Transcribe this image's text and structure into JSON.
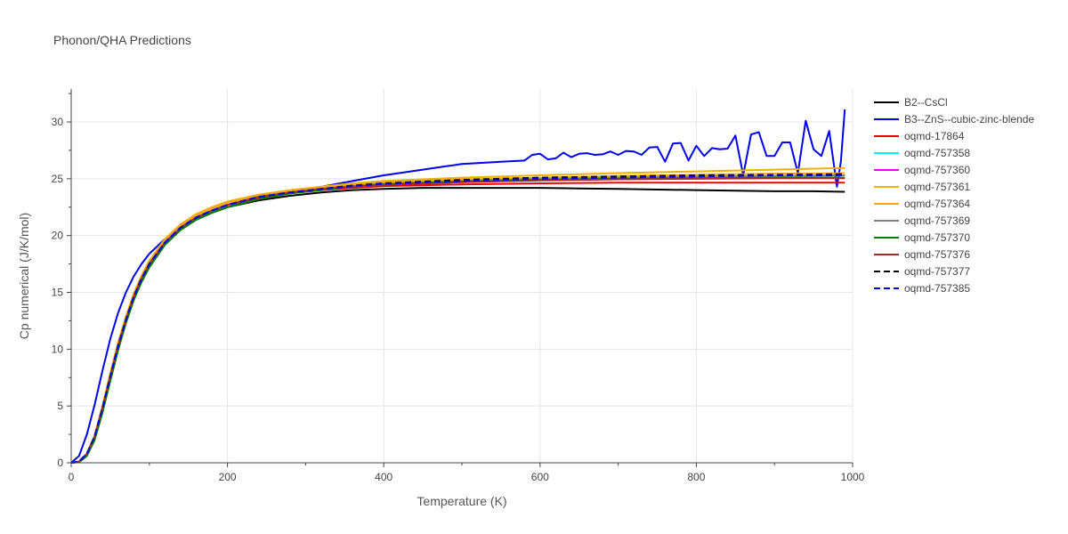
{
  "chart_data": {
    "type": "line",
    "title": "Phonon/QHA Predictions",
    "xlabel": "Temperature (K)",
    "ylabel": "Cp numerical (J/K/mol)",
    "xlim": [
      0,
      1000
    ],
    "ylim": [
      0,
      32.9
    ],
    "xticks": [
      0,
      200,
      400,
      600,
      800,
      1000
    ],
    "yticks": [
      0,
      5,
      10,
      15,
      20,
      25,
      30
    ],
    "grid": true,
    "legend_position": "right",
    "series": [
      {
        "name": "B2--CsCl",
        "color": "#000000",
        "dash": "solid",
        "x": [
          0,
          10,
          20,
          30,
          40,
          50,
          60,
          70,
          80,
          90,
          100,
          120,
          140,
          160,
          180,
          200,
          240,
          280,
          320,
          360,
          400,
          450,
          500,
          550,
          600,
          650,
          700,
          800,
          850,
          900,
          950,
          990
        ],
        "y": [
          0,
          0.1,
          0.7,
          2.1,
          4.5,
          7.3,
          10,
          12.4,
          14.4,
          16,
          17.3,
          19.2,
          20.5,
          21.4,
          22,
          22.5,
          23.1,
          23.5,
          23.8,
          24,
          24.1,
          24.2,
          24.2,
          24.2,
          24.2,
          24.15,
          24.1,
          24,
          23.95,
          23.9,
          23.9,
          23.85
        ]
      },
      {
        "name": "B3--ZnS--cubic-zinc-blende",
        "color": "#0000ee",
        "dash": "solid",
        "x": [
          0,
          10,
          20,
          30,
          40,
          50,
          60,
          70,
          80,
          90,
          100,
          120,
          140,
          160,
          180,
          200,
          240,
          280,
          320,
          360,
          400,
          450,
          480,
          500,
          550,
          580,
          590,
          600,
          610,
          620,
          630,
          640,
          650,
          660,
          670,
          680,
          690,
          700,
          710,
          720,
          730,
          740,
          750,
          760,
          770,
          780,
          790,
          800,
          810,
          820,
          830,
          840,
          850,
          860,
          870,
          880,
          890,
          900,
          910,
          920,
          930,
          940,
          950,
          960,
          970,
          980,
          985,
          990
        ],
        "y": [
          0,
          0.6,
          2.5,
          5.1,
          8.1,
          10.9,
          13.2,
          15,
          16.4,
          17.5,
          18.4,
          19.7,
          20.7,
          21.4,
          22,
          22.5,
          23.3,
          23.8,
          24.3,
          24.8,
          25.3,
          25.8,
          26.1,
          26.3,
          26.5,
          26.6,
          27.1,
          27.2,
          26.7,
          26.8,
          27.3,
          26.9,
          27.2,
          27.25,
          27.1,
          27.15,
          27.4,
          27.1,
          27.45,
          27.4,
          27.1,
          27.75,
          27.8,
          26.5,
          28.1,
          28.15,
          26.6,
          27.9,
          27.0,
          27.7,
          27.6,
          27.65,
          28.8,
          25.3,
          28.9,
          29.1,
          27.0,
          27.0,
          28.2,
          28.2,
          25.5,
          30.1,
          27.6,
          27.0,
          29.2,
          24.3,
          26.5,
          31.1
        ]
      },
      {
        "name": "oqmd-17864",
        "color": "#ee0000",
        "dash": "solid",
        "x": [
          0,
          10,
          20,
          30,
          40,
          50,
          60,
          70,
          80,
          90,
          100,
          120,
          140,
          160,
          180,
          200,
          240,
          280,
          320,
          360,
          400,
          500,
          600,
          700,
          800,
          900,
          990
        ],
        "y": [
          0,
          0.1,
          0.8,
          2.3,
          4.8,
          7.6,
          10.3,
          12.6,
          14.6,
          16.2,
          17.5,
          19.4,
          20.7,
          21.6,
          22.2,
          22.7,
          23.3,
          23.7,
          24,
          24.2,
          24.35,
          24.5,
          24.6,
          24.65,
          24.65,
          24.65,
          24.65
        ]
      },
      {
        "name": "oqmd-757358",
        "color": "#00eeee",
        "dash": "solid",
        "x": [
          0,
          10,
          20,
          30,
          40,
          50,
          60,
          70,
          80,
          90,
          100,
          120,
          140,
          160,
          180,
          200,
          240,
          280,
          320,
          360,
          400,
          500,
          600,
          700,
          800,
          900,
          990
        ],
        "y": [
          0,
          0.1,
          0.8,
          2.3,
          4.8,
          7.6,
          10.3,
          12.6,
          14.6,
          16.2,
          17.5,
          19.4,
          20.7,
          21.6,
          22.2,
          22.7,
          23.4,
          23.8,
          24.1,
          24.3,
          24.5,
          24.7,
          24.9,
          25,
          25.05,
          25.1,
          25.1
        ]
      },
      {
        "name": "oqmd-757360",
        "color": "#ee00ee",
        "dash": "solid",
        "x": [
          0,
          10,
          20,
          30,
          40,
          50,
          60,
          70,
          80,
          90,
          100,
          120,
          140,
          160,
          180,
          200,
          240,
          280,
          320,
          360,
          400,
          500,
          600,
          700,
          800,
          900,
          990
        ],
        "y": [
          0,
          0.1,
          0.8,
          2.3,
          4.8,
          7.6,
          10.3,
          12.6,
          14.6,
          16.2,
          17.5,
          19.4,
          20.7,
          21.6,
          22.2,
          22.7,
          23.4,
          23.8,
          24.1,
          24.35,
          24.55,
          24.8,
          25,
          25.1,
          25.2,
          25.25,
          25.3
        ]
      },
      {
        "name": "oqmd-757361",
        "color": "#f0b000",
        "dash": "solid",
        "x": [
          0,
          10,
          20,
          30,
          40,
          50,
          60,
          70,
          80,
          90,
          100,
          120,
          140,
          160,
          180,
          200,
          240,
          280,
          320,
          360,
          400,
          500,
          600,
          700,
          800,
          900,
          990
        ],
        "y": [
          0,
          0.1,
          0.8,
          2.4,
          5,
          7.9,
          10.6,
          12.9,
          14.9,
          16.5,
          17.8,
          19.7,
          21,
          21.9,
          22.5,
          23,
          23.6,
          24,
          24.3,
          24.6,
          24.8,
          25.1,
          25.3,
          25.5,
          25.65,
          25.8,
          25.95
        ]
      },
      {
        "name": "oqmd-757364",
        "color": "#ffa500",
        "dash": "solid",
        "x": [
          0,
          10,
          20,
          30,
          40,
          50,
          60,
          70,
          80,
          90,
          100,
          120,
          140,
          160,
          180,
          200,
          240,
          280,
          320,
          360,
          400,
          500,
          600,
          700,
          800,
          900,
          990
        ],
        "y": [
          0,
          0.1,
          0.8,
          2.4,
          4.9,
          7.8,
          10.5,
          12.8,
          14.8,
          16.4,
          17.7,
          19.6,
          20.9,
          21.8,
          22.4,
          22.9,
          23.5,
          23.9,
          24.2,
          24.5,
          24.7,
          24.95,
          25.1,
          25.25,
          25.35,
          25.45,
          25.5
        ]
      },
      {
        "name": "oqmd-757369",
        "color": "#808080",
        "dash": "solid",
        "x": [
          0,
          10,
          20,
          30,
          40,
          50,
          60,
          70,
          80,
          90,
          100,
          120,
          140,
          160,
          180,
          200,
          240,
          280,
          320,
          360,
          400,
          500,
          600,
          700,
          800,
          900,
          990
        ],
        "y": [
          0,
          0.1,
          0.8,
          2.3,
          4.8,
          7.6,
          10.3,
          12.6,
          14.6,
          16.2,
          17.5,
          19.4,
          20.7,
          21.6,
          22.2,
          22.7,
          23.4,
          23.8,
          24.1,
          24.35,
          24.55,
          24.8,
          25,
          25.1,
          25.2,
          25.25,
          25.3
        ]
      },
      {
        "name": "oqmd-757370",
        "color": "#008000",
        "dash": "solid",
        "x": [
          0,
          10,
          20,
          30,
          40,
          50,
          60,
          70,
          80,
          90,
          100,
          120,
          140,
          160,
          180,
          200,
          240,
          280,
          320,
          360,
          400,
          500,
          600,
          700,
          800,
          900,
          990
        ],
        "y": [
          0,
          0.05,
          0.6,
          2,
          4.4,
          7.2,
          9.9,
          12.3,
          14.3,
          15.9,
          17.2,
          19.2,
          20.5,
          21.4,
          22,
          22.5,
          23.2,
          23.7,
          24,
          24.3,
          24.5,
          24.75,
          24.9,
          25,
          25.05,
          25.1,
          25.1
        ]
      },
      {
        "name": "oqmd-757376",
        "color": "#a52a2a",
        "dash": "solid",
        "x": [
          0,
          10,
          20,
          30,
          40,
          50,
          60,
          70,
          80,
          90,
          100,
          120,
          140,
          160,
          180,
          200,
          240,
          280,
          320,
          360,
          400,
          500,
          600,
          700,
          800,
          900,
          990
        ],
        "y": [
          0,
          0.1,
          0.8,
          2.3,
          4.8,
          7.6,
          10.3,
          12.6,
          14.6,
          16.2,
          17.5,
          19.4,
          20.7,
          21.6,
          22.2,
          22.7,
          23.4,
          23.8,
          24.1,
          24.3,
          24.45,
          24.7,
          24.85,
          24.95,
          25,
          25.05,
          25.05
        ]
      },
      {
        "name": "oqmd-757377",
        "color": "#000000",
        "dash": "dashed",
        "x": [
          0,
          10,
          20,
          30,
          40,
          50,
          60,
          70,
          80,
          90,
          100,
          120,
          140,
          160,
          180,
          200,
          240,
          280,
          320,
          360,
          400,
          500,
          600,
          700,
          800,
          900,
          990
        ],
        "y": [
          0,
          0.1,
          0.8,
          2.3,
          4.8,
          7.6,
          10.3,
          12.6,
          14.6,
          16.2,
          17.5,
          19.4,
          20.7,
          21.6,
          22.2,
          22.7,
          23.4,
          23.8,
          24.1,
          24.4,
          24.6,
          24.9,
          25.1,
          25.2,
          25.3,
          25.35,
          25.4
        ]
      },
      {
        "name": "oqmd-757385",
        "color": "#0000ee",
        "dash": "dashed",
        "x": [
          0,
          10,
          20,
          30,
          40,
          50,
          60,
          70,
          80,
          90,
          100,
          120,
          140,
          160,
          180,
          200,
          240,
          280,
          320,
          360,
          400,
          500,
          600,
          700,
          800,
          900,
          990
        ],
        "y": [
          0,
          0.1,
          0.8,
          2.3,
          4.8,
          7.6,
          10.3,
          12.6,
          14.6,
          16.2,
          17.5,
          19.4,
          20.7,
          21.6,
          22.2,
          22.7,
          23.4,
          23.8,
          24.1,
          24.35,
          24.55,
          24.8,
          25,
          25.1,
          25.2,
          25.3,
          25.3
        ]
      }
    ]
  }
}
